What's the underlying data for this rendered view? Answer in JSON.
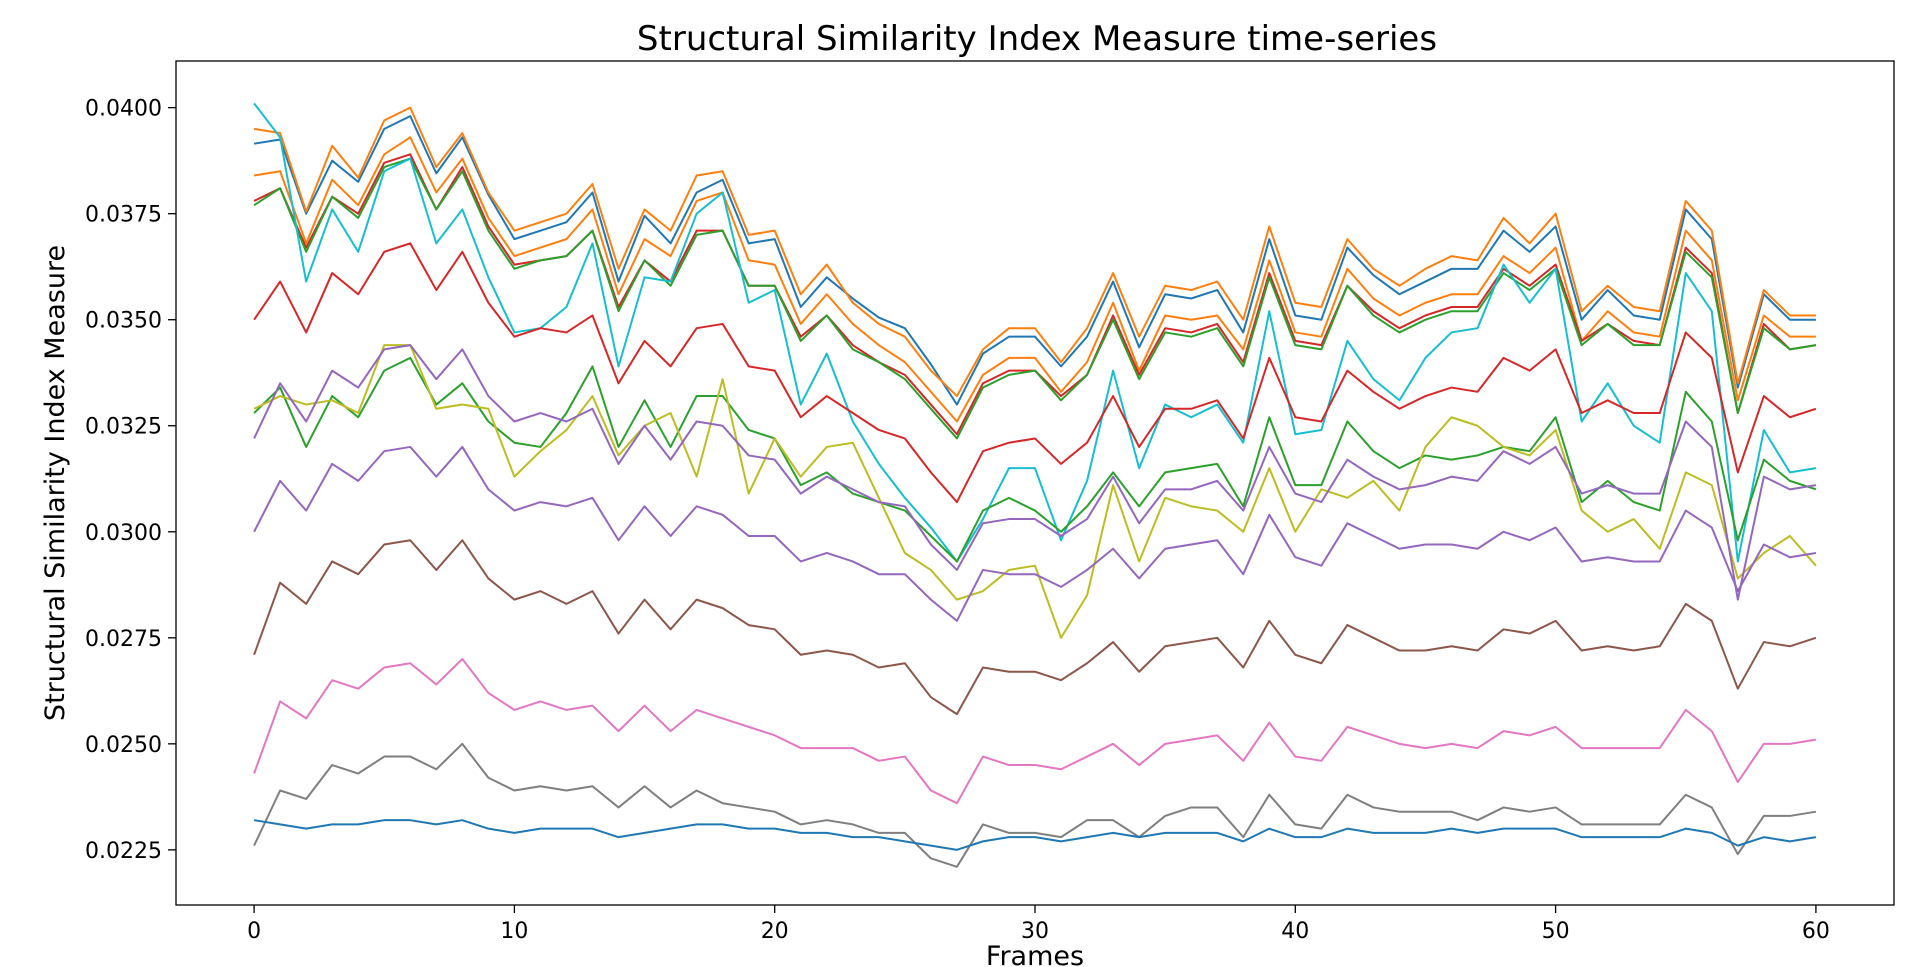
{
  "chart_data": {
    "type": "line",
    "title": "Structural Similarity Index Measure time-series",
    "xlabel": "Frames",
    "ylabel": "Structural Similarity Index Measure",
    "xlim": [
      -3,
      63
    ],
    "ylim": [
      0.0212,
      0.0411
    ],
    "xticks": [
      0,
      10,
      20,
      30,
      40,
      50,
      60
    ],
    "yticks": [
      0.0225,
      0.025,
      0.0275,
      0.03,
      0.0325,
      0.035,
      0.0375,
      0.04
    ],
    "ytick_labels": [
      "0.0225",
      "0.0250",
      "0.0275",
      "0.0300",
      "0.0325",
      "0.0350",
      "0.0375",
      "0.0400"
    ],
    "grid": false,
    "x": [
      0,
      1,
      2,
      3,
      4,
      5,
      6,
      7,
      8,
      9,
      10,
      11,
      12,
      13,
      14,
      15,
      16,
      17,
      18,
      19,
      20,
      21,
      22,
      23,
      24,
      25,
      26,
      27,
      28,
      29,
      30,
      31,
      32,
      33,
      34,
      35,
      36,
      37,
      38,
      39,
      40,
      41,
      42,
      43,
      44,
      45,
      46,
      47,
      48,
      49,
      50,
      51,
      52,
      53,
      54,
      55,
      56,
      57,
      58,
      59,
      60
    ],
    "series": [
      {
        "color": "#1f77b4",
        "values": [
          0.03915,
          0.03925,
          0.0375,
          0.03875,
          0.03825,
          0.0395,
          0.0398,
          0.03845,
          0.0393,
          0.03795,
          0.0369,
          0.0371,
          0.0373,
          0.038,
          0.0359,
          0.03745,
          0.0368,
          0.038,
          0.0383,
          0.0368,
          0.0369,
          0.0353,
          0.036,
          0.0355,
          0.03505,
          0.0348,
          0.03395,
          0.033,
          0.0342,
          0.0346,
          0.0346,
          0.0339,
          0.0346,
          0.0359,
          0.03435,
          0.0356,
          0.0355,
          0.0357,
          0.0347,
          0.0369,
          0.0351,
          0.035,
          0.0367,
          0.03605,
          0.0356,
          0.0359,
          0.0362,
          0.0362,
          0.0371,
          0.0366,
          0.0372,
          0.035,
          0.0357,
          0.0351,
          0.035,
          0.0376,
          0.0369,
          0.0334,
          0.0356,
          0.035,
          0.035
        ]
      },
      {
        "color": "#ff7f0e",
        "values": [
          0.0395,
          0.0394,
          0.03755,
          0.0391,
          0.03835,
          0.0397,
          0.04,
          0.0386,
          0.0394,
          0.038,
          0.0371,
          0.0373,
          0.0375,
          0.0382,
          0.0362,
          0.0376,
          0.0371,
          0.0384,
          0.0385,
          0.037,
          0.0371,
          0.0356,
          0.0363,
          0.0354,
          0.0349,
          0.0346,
          0.0338,
          0.0332,
          0.0343,
          0.0348,
          0.0348,
          0.034,
          0.0348,
          0.0361,
          0.0346,
          0.0358,
          0.0357,
          0.0359,
          0.035,
          0.0372,
          0.0354,
          0.0353,
          0.0369,
          0.0362,
          0.0358,
          0.0362,
          0.0365,
          0.0364,
          0.0374,
          0.0368,
          0.0375,
          0.0352,
          0.0358,
          0.0353,
          0.0352,
          0.0378,
          0.0371,
          0.0335,
          0.0357,
          0.0351,
          0.0351
        ]
      },
      {
        "color": "#ff7f0e",
        "values": [
          0.0384,
          0.0385,
          0.0368,
          0.0383,
          0.0377,
          0.0389,
          0.0393,
          0.038,
          0.0388,
          0.0374,
          0.0365,
          0.0367,
          0.0369,
          0.0376,
          0.0356,
          0.0369,
          0.0365,
          0.0378,
          0.038,
          0.0364,
          0.0363,
          0.0349,
          0.0356,
          0.0349,
          0.0344,
          0.034,
          0.0333,
          0.0326,
          0.0337,
          0.0341,
          0.0341,
          0.0333,
          0.034,
          0.0354,
          0.0338,
          0.0351,
          0.035,
          0.0351,
          0.0343,
          0.0364,
          0.0347,
          0.0346,
          0.0362,
          0.0355,
          0.0351,
          0.0354,
          0.0356,
          0.0356,
          0.0365,
          0.0361,
          0.0367,
          0.0345,
          0.0352,
          0.0347,
          0.0346,
          0.0371,
          0.0364,
          0.0331,
          0.0351,
          0.0346,
          0.0346
        ]
      },
      {
        "color": "#d62728",
        "values": [
          0.0378,
          0.0381,
          0.0367,
          0.0379,
          0.0375,
          0.0387,
          0.0389,
          0.0376,
          0.0386,
          0.0372,
          0.0363,
          0.0364,
          0.0365,
          0.0371,
          0.0353,
          0.0364,
          0.0359,
          0.0371,
          0.0371,
          0.0358,
          0.0358,
          0.0346,
          0.0351,
          0.0344,
          0.034,
          0.0337,
          0.033,
          0.0323,
          0.0335,
          0.0338,
          0.0338,
          0.0332,
          0.0337,
          0.0351,
          0.0337,
          0.0348,
          0.0347,
          0.0349,
          0.034,
          0.0361,
          0.0345,
          0.0344,
          0.0358,
          0.0352,
          0.0348,
          0.0351,
          0.0353,
          0.0353,
          0.0362,
          0.0358,
          0.0363,
          0.0345,
          0.0349,
          0.0345,
          0.0344,
          0.0367,
          0.0361,
          0.0328,
          0.0349,
          0.0343,
          0.0344
        ]
      },
      {
        "color": "#2ca02c",
        "values": [
          0.0377,
          0.0381,
          0.0366,
          0.0379,
          0.0374,
          0.0386,
          0.0388,
          0.0376,
          0.0385,
          0.0371,
          0.0362,
          0.0364,
          0.0365,
          0.0371,
          0.0352,
          0.0364,
          0.0358,
          0.037,
          0.0371,
          0.0358,
          0.0358,
          0.0345,
          0.0351,
          0.0343,
          0.034,
          0.0336,
          0.0329,
          0.0322,
          0.0334,
          0.0337,
          0.0338,
          0.0331,
          0.0337,
          0.035,
          0.0336,
          0.0347,
          0.0346,
          0.0348,
          0.0339,
          0.036,
          0.0344,
          0.0343,
          0.0358,
          0.0351,
          0.0347,
          0.035,
          0.0352,
          0.0352,
          0.0361,
          0.0357,
          0.0362,
          0.0344,
          0.0349,
          0.0344,
          0.0344,
          0.0366,
          0.036,
          0.0328,
          0.0348,
          0.0343,
          0.0344
        ]
      },
      {
        "color": "#17becf",
        "values": [
          0.0401,
          0.0393,
          0.0359,
          0.0376,
          0.0366,
          0.0385,
          0.0388,
          0.0368,
          0.0376,
          0.036,
          0.0347,
          0.0348,
          0.0353,
          0.0368,
          0.0339,
          0.036,
          0.0359,
          0.0375,
          0.038,
          0.0354,
          0.0357,
          0.033,
          0.0342,
          0.0326,
          0.0316,
          0.0308,
          0.0301,
          0.0293,
          0.0303,
          0.0315,
          0.0315,
          0.0298,
          0.0312,
          0.0338,
          0.0315,
          0.033,
          0.0327,
          0.033,
          0.0321,
          0.0352,
          0.0323,
          0.0324,
          0.0345,
          0.0336,
          0.0331,
          0.0341,
          0.0347,
          0.0348,
          0.0363,
          0.0354,
          0.0362,
          0.0326,
          0.0335,
          0.0325,
          0.0321,
          0.0361,
          0.0352,
          0.0293,
          0.0324,
          0.0314,
          0.0315
        ]
      },
      {
        "color": "#d62728",
        "values": [
          0.035,
          0.0359,
          0.0347,
          0.0361,
          0.0356,
          0.0366,
          0.0368,
          0.0357,
          0.0366,
          0.0354,
          0.0346,
          0.0348,
          0.0347,
          0.0351,
          0.0335,
          0.0345,
          0.0339,
          0.0348,
          0.0349,
          0.0339,
          0.0338,
          0.0327,
          0.0332,
          0.0328,
          0.0324,
          0.0322,
          0.0314,
          0.0307,
          0.0319,
          0.0321,
          0.0322,
          0.0316,
          0.0321,
          0.0332,
          0.032,
          0.0329,
          0.0329,
          0.0331,
          0.0322,
          0.0341,
          0.0327,
          0.0326,
          0.0338,
          0.0333,
          0.0329,
          0.0332,
          0.0334,
          0.0333,
          0.0341,
          0.0338,
          0.0343,
          0.0328,
          0.0331,
          0.0328,
          0.0328,
          0.0347,
          0.0341,
          0.0314,
          0.0332,
          0.0327,
          0.0329
        ]
      },
      {
        "color": "#2ca02c",
        "values": [
          0.0328,
          0.0334,
          0.032,
          0.0332,
          0.0327,
          0.0338,
          0.0341,
          0.033,
          0.0335,
          0.0326,
          0.0321,
          0.032,
          0.0328,
          0.0339,
          0.032,
          0.0331,
          0.032,
          0.0332,
          0.0332,
          0.0324,
          0.0322,
          0.0311,
          0.0314,
          0.0309,
          0.0307,
          0.0305,
          0.0299,
          0.0293,
          0.0305,
          0.0308,
          0.0305,
          0.03,
          0.0306,
          0.0314,
          0.0306,
          0.0314,
          0.0315,
          0.0316,
          0.0306,
          0.0327,
          0.0311,
          0.0311,
          0.0326,
          0.0319,
          0.0315,
          0.0318,
          0.0317,
          0.0318,
          0.032,
          0.0319,
          0.0327,
          0.0307,
          0.0312,
          0.0307,
          0.0305,
          0.0333,
          0.0326,
          0.0298,
          0.0317,
          0.0312,
          0.031
        ]
      },
      {
        "color": "#bcbd22",
        "values": [
          0.0329,
          0.0332,
          0.033,
          0.0331,
          0.0328,
          0.0344,
          0.0344,
          0.0329,
          0.033,
          0.0329,
          0.0313,
          0.0319,
          0.0324,
          0.0332,
          0.0318,
          0.0325,
          0.0328,
          0.0313,
          0.0336,
          0.0309,
          0.0322,
          0.0313,
          0.032,
          0.0321,
          0.0308,
          0.0295,
          0.0291,
          0.0284,
          0.0286,
          0.0291,
          0.0292,
          0.0275,
          0.0285,
          0.0311,
          0.0293,
          0.0308,
          0.0306,
          0.0305,
          0.03,
          0.0315,
          0.03,
          0.031,
          0.0308,
          0.0312,
          0.0305,
          0.032,
          0.0327,
          0.0325,
          0.032,
          0.0318,
          0.0324,
          0.0305,
          0.03,
          0.0303,
          0.0296,
          0.0314,
          0.0311,
          0.0289,
          0.0295,
          0.0299,
          0.0292
        ]
      },
      {
        "color": "#9467bd",
        "values": [
          0.0322,
          0.0335,
          0.0326,
          0.0338,
          0.0334,
          0.0343,
          0.0344,
          0.0336,
          0.0343,
          0.0332,
          0.0326,
          0.0328,
          0.0326,
          0.0329,
          0.0316,
          0.0325,
          0.0317,
          0.0326,
          0.0325,
          0.0318,
          0.0317,
          0.0309,
          0.0313,
          0.031,
          0.0307,
          0.0306,
          0.0297,
          0.0291,
          0.0302,
          0.0303,
          0.0303,
          0.0299,
          0.0303,
          0.0313,
          0.0302,
          0.031,
          0.031,
          0.0312,
          0.0305,
          0.032,
          0.0309,
          0.0307,
          0.0317,
          0.0313,
          0.031,
          0.0311,
          0.0313,
          0.0312,
          0.0319,
          0.0316,
          0.032,
          0.0309,
          0.0311,
          0.0309,
          0.0309,
          0.0326,
          0.032,
          0.0284,
          0.0313,
          0.031,
          0.0311
        ]
      },
      {
        "color": "#9467bd",
        "values": [
          0.03,
          0.0312,
          0.0305,
          0.0316,
          0.0312,
          0.0319,
          0.032,
          0.0313,
          0.032,
          0.031,
          0.0305,
          0.0307,
          0.0306,
          0.0308,
          0.0298,
          0.0306,
          0.0299,
          0.0306,
          0.0304,
          0.0299,
          0.0299,
          0.0293,
          0.0295,
          0.0293,
          0.029,
          0.029,
          0.0284,
          0.0279,
          0.0291,
          0.029,
          0.029,
          0.0287,
          0.0291,
          0.0296,
          0.0289,
          0.0296,
          0.0297,
          0.0298,
          0.029,
          0.0304,
          0.0294,
          0.0292,
          0.0302,
          0.0299,
          0.0296,
          0.0297,
          0.0297,
          0.0296,
          0.03,
          0.0298,
          0.0301,
          0.0293,
          0.0294,
          0.0293,
          0.0293,
          0.0305,
          0.0301,
          0.0286,
          0.0297,
          0.0294,
          0.0295
        ]
      },
      {
        "color": "#8c564b",
        "values": [
          0.0271,
          0.0288,
          0.0283,
          0.0293,
          0.029,
          0.0297,
          0.0298,
          0.0291,
          0.0298,
          0.0289,
          0.0284,
          0.0286,
          0.0283,
          0.0286,
          0.0276,
          0.0284,
          0.0277,
          0.0284,
          0.0282,
          0.0278,
          0.0277,
          0.0271,
          0.0272,
          0.0271,
          0.0268,
          0.0269,
          0.0261,
          0.0257,
          0.0268,
          0.0267,
          0.0267,
          0.0265,
          0.0269,
          0.0274,
          0.0267,
          0.0273,
          0.0274,
          0.0275,
          0.0268,
          0.0279,
          0.0271,
          0.0269,
          0.0278,
          0.0275,
          0.0272,
          0.0272,
          0.0273,
          0.0272,
          0.0277,
          0.0276,
          0.0279,
          0.0272,
          0.0273,
          0.0272,
          0.0273,
          0.0283,
          0.0279,
          0.0263,
          0.0274,
          0.0273,
          0.0275
        ]
      },
      {
        "color": "#e377c2",
        "values": [
          0.0243,
          0.026,
          0.0256,
          0.0265,
          0.0263,
          0.0268,
          0.0269,
          0.0264,
          0.027,
          0.0262,
          0.0258,
          0.026,
          0.0258,
          0.0259,
          0.0253,
          0.0259,
          0.0253,
          0.0258,
          0.0256,
          0.0254,
          0.0252,
          0.0249,
          0.0249,
          0.0249,
          0.0246,
          0.0247,
          0.0239,
          0.0236,
          0.0247,
          0.0245,
          0.0245,
          0.0244,
          0.0247,
          0.025,
          0.0245,
          0.025,
          0.0251,
          0.0252,
          0.0246,
          0.0255,
          0.0247,
          0.0246,
          0.0254,
          0.0252,
          0.025,
          0.0249,
          0.025,
          0.0249,
          0.0253,
          0.0252,
          0.0254,
          0.0249,
          0.0249,
          0.0249,
          0.0249,
          0.0258,
          0.0253,
          0.0241,
          0.025,
          0.025,
          0.0251
        ]
      },
      {
        "color": "#7f7f7f",
        "values": [
          0.0226,
          0.0239,
          0.0237,
          0.0245,
          0.0243,
          0.0247,
          0.0247,
          0.0244,
          0.025,
          0.0242,
          0.0239,
          0.024,
          0.0239,
          0.024,
          0.0235,
          0.024,
          0.0235,
          0.0239,
          0.0236,
          0.0235,
          0.0234,
          0.0231,
          0.0232,
          0.0231,
          0.0229,
          0.0229,
          0.0223,
          0.0221,
          0.0231,
          0.0229,
          0.0229,
          0.0228,
          0.0232,
          0.0232,
          0.0228,
          0.0233,
          0.0235,
          0.0235,
          0.0228,
          0.0238,
          0.0231,
          0.023,
          0.0238,
          0.0235,
          0.0234,
          0.0234,
          0.0234,
          0.0232,
          0.0235,
          0.0234,
          0.0235,
          0.0231,
          0.0231,
          0.0231,
          0.0231,
          0.0238,
          0.0235,
          0.0224,
          0.0233,
          0.0233,
          0.0234
        ]
      },
      {
        "color": "#1f77b4",
        "values": [
          0.0232,
          0.0231,
          0.023,
          0.0231,
          0.0231,
          0.0232,
          0.0232,
          0.0231,
          0.0232,
          0.023,
          0.0229,
          0.023,
          0.023,
          0.023,
          0.0228,
          0.0229,
          0.023,
          0.0231,
          0.0231,
          0.023,
          0.023,
          0.0229,
          0.0229,
          0.0228,
          0.0228,
          0.0227,
          0.0226,
          0.0225,
          0.0227,
          0.0228,
          0.0228,
          0.0227,
          0.0228,
          0.0229,
          0.0228,
          0.0229,
          0.0229,
          0.0229,
          0.0227,
          0.023,
          0.0228,
          0.0228,
          0.023,
          0.0229,
          0.0229,
          0.0229,
          0.023,
          0.0229,
          0.023,
          0.023,
          0.023,
          0.0228,
          0.0228,
          0.0228,
          0.0228,
          0.023,
          0.0229,
          0.0226,
          0.0228,
          0.0227,
          0.0228
        ]
      }
    ]
  }
}
